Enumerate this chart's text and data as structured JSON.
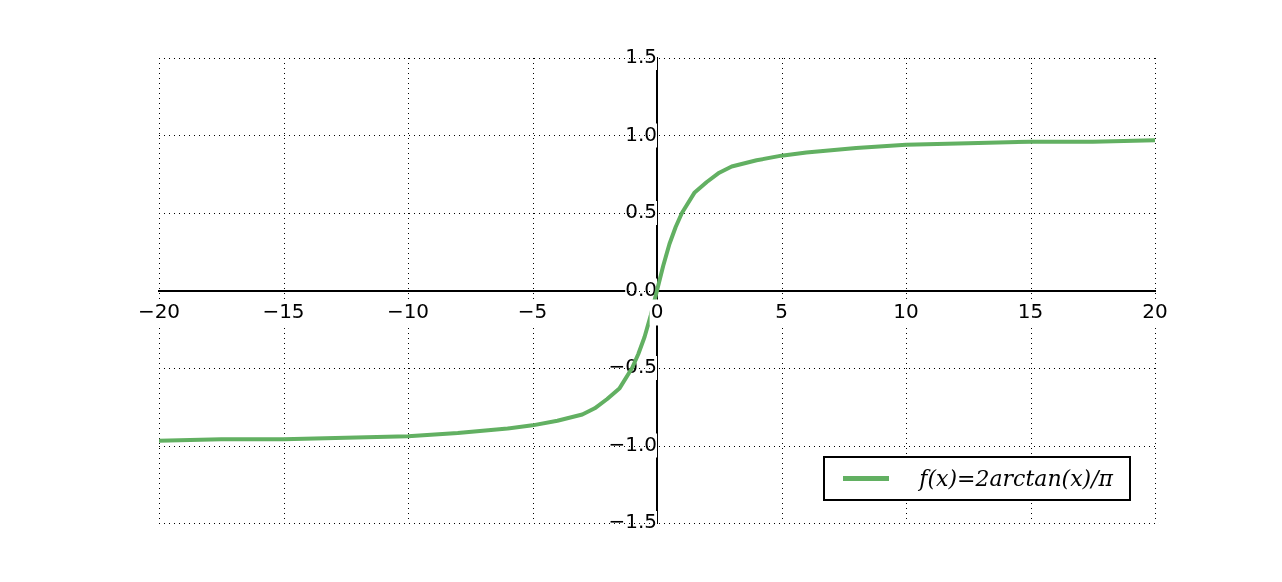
{
  "chart_data": {
    "type": "line",
    "series": [
      {
        "name": "f(x)=2arctan(x)/π",
        "color": "#62b062",
        "x": [
          -20,
          -17.5,
          -15,
          -12.5,
          -10,
          -8,
          -6,
          -5,
          -4,
          -3,
          -2.5,
          -2,
          -1.5,
          -1,
          -0.75,
          -0.5,
          -0.25,
          0,
          0.25,
          0.5,
          0.75,
          1,
          1.5,
          2,
          2.5,
          3,
          4,
          5,
          6,
          8,
          10,
          12.5,
          15,
          17.5,
          20
        ],
        "values": [
          -0.97,
          -0.96,
          -0.96,
          -0.95,
          -0.94,
          -0.92,
          -0.89,
          -0.87,
          -0.84,
          -0.8,
          -0.76,
          -0.7,
          -0.63,
          -0.5,
          -0.41,
          -0.3,
          -0.16,
          0,
          0.16,
          0.3,
          0.41,
          0.5,
          0.63,
          0.7,
          0.76,
          0.8,
          0.84,
          0.87,
          0.89,
          0.92,
          0.94,
          0.95,
          0.96,
          0.96,
          0.97
        ]
      }
    ],
    "xlim": [
      -20,
      20
    ],
    "xticks": [
      -20,
      -15,
      -10,
      -5,
      0,
      5,
      10,
      15,
      20
    ],
    "ylim": [
      -1.5,
      1.5
    ],
    "yticks": [
      {
        "value": -1.5,
        "label": "−1.5"
      },
      {
        "value": -1,
        "label": "−1.0"
      },
      {
        "value": -0.5,
        "label": "−0.5"
      },
      {
        "value": 0,
        "label": "0.0"
      },
      {
        "value": 0.5,
        "label": "0.5"
      },
      {
        "value": 1,
        "label": "1.0"
      },
      {
        "value": 1.5,
        "label": "1.5"
      }
    ],
    "grid": true,
    "legend": "bottom right",
    "marker": "none",
    "line_style": "solid"
  }
}
